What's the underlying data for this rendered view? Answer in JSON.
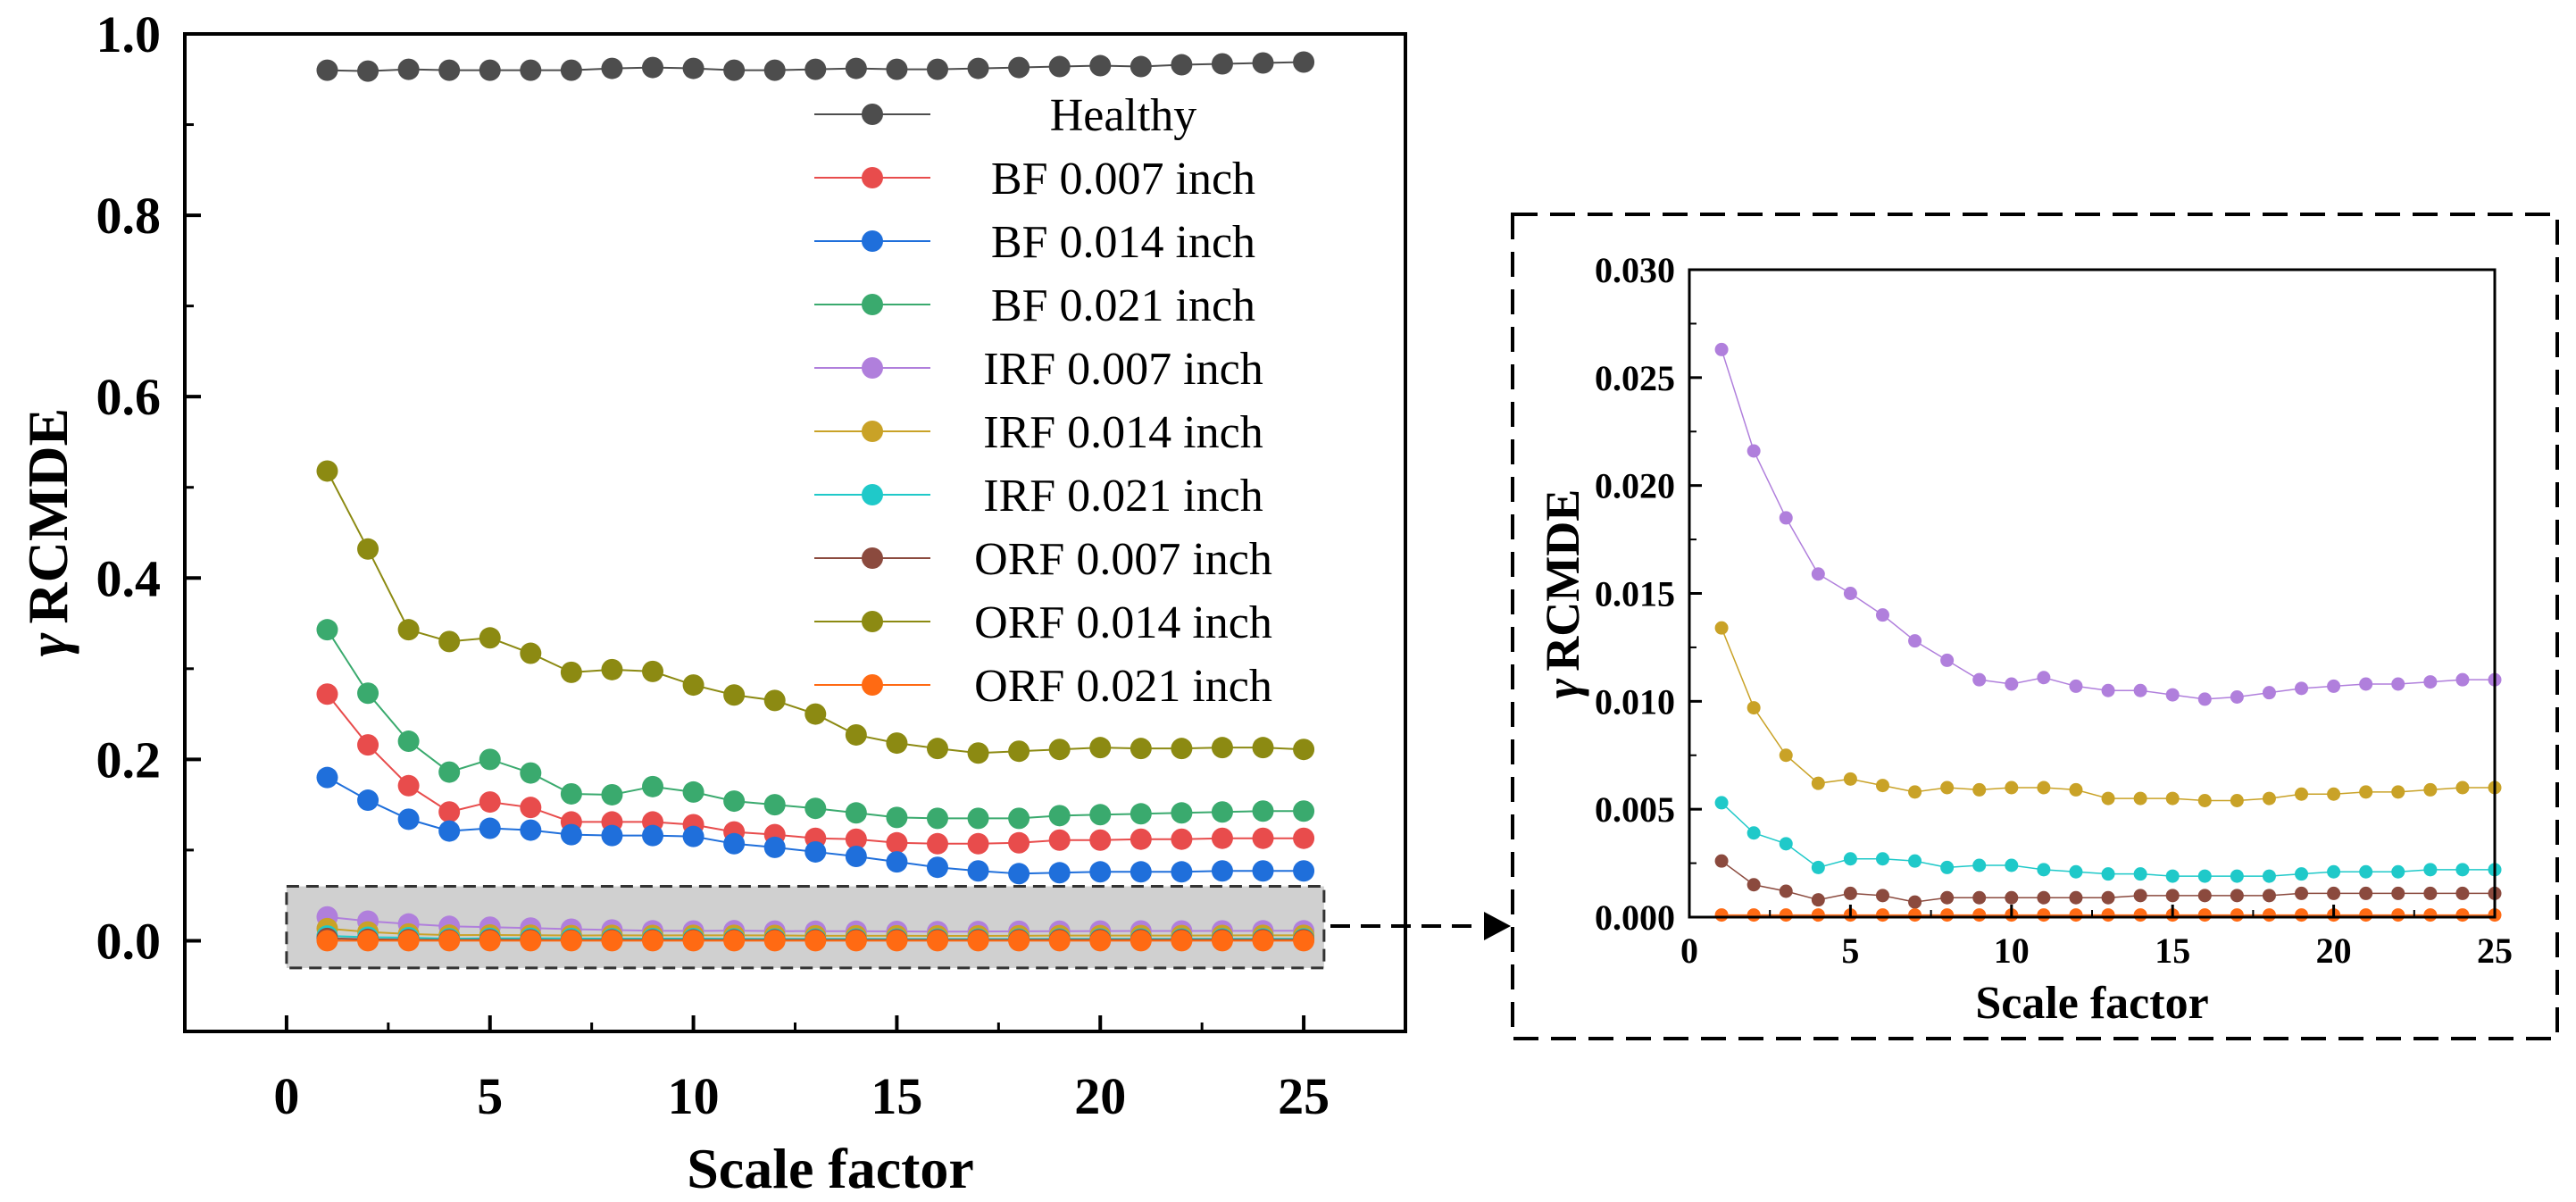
{
  "chart_data": [
    {
      "type": "line",
      "name": "main",
      "xlabel": "Scale factor",
      "ylabel_symbol": "γ",
      "ylabel_text": "RCMDE",
      "xlim": [
        -2.5,
        27.5
      ],
      "ylim": [
        -0.1,
        1.0
      ],
      "xticks": [
        0,
        5,
        10,
        15,
        20,
        25
      ],
      "xtick_labels": [
        "0",
        "5",
        "10",
        "15",
        "20",
        "25"
      ],
      "yticks": [
        0.0,
        0.2,
        0.4,
        0.6,
        0.8,
        1.0
      ],
      "ytick_labels": [
        "0.0",
        "0.2",
        "0.4",
        "0.6",
        "0.8",
        "1.0"
      ],
      "legend_position": "top-right",
      "highlight_box": {
        "x": [
          0,
          25.5
        ],
        "y": [
          -0.03,
          0.06
        ]
      },
      "x": [
        1,
        2,
        3,
        4,
        5,
        6,
        7,
        8,
        9,
        10,
        11,
        12,
        13,
        14,
        15,
        16,
        17,
        18,
        19,
        20,
        21,
        22,
        23,
        24,
        25
      ],
      "series": [
        {
          "name": "Healthy",
          "color": "#4d4d4d",
          "values": [
            0.96,
            0.959,
            0.961,
            0.96,
            0.96,
            0.96,
            0.96,
            0.962,
            0.963,
            0.962,
            0.96,
            0.96,
            0.961,
            0.962,
            0.961,
            0.961,
            0.962,
            0.963,
            0.964,
            0.965,
            0.964,
            0.966,
            0.967,
            0.968,
            0.969
          ]
        },
        {
          "name": "BF 0.007 inch",
          "color": "#e84c4c",
          "values": [
            0.272,
            0.216,
            0.171,
            0.142,
            0.153,
            0.147,
            0.131,
            0.131,
            0.131,
            0.128,
            0.12,
            0.117,
            0.113,
            0.112,
            0.108,
            0.107,
            0.107,
            0.108,
            0.111,
            0.111,
            0.112,
            0.112,
            0.113,
            0.113,
            0.113
          ]
        },
        {
          "name": "BF 0.014 inch",
          "color": "#1f6fdb",
          "values": [
            0.18,
            0.155,
            0.134,
            0.121,
            0.124,
            0.122,
            0.117,
            0.116,
            0.116,
            0.115,
            0.107,
            0.103,
            0.098,
            0.093,
            0.087,
            0.081,
            0.077,
            0.074,
            0.075,
            0.076,
            0.076,
            0.076,
            0.077,
            0.077,
            0.077
          ]
        },
        {
          "name": "BF 0.021 inch",
          "color": "#3aaa6e",
          "values": [
            0.343,
            0.273,
            0.22,
            0.186,
            0.2,
            0.185,
            0.162,
            0.161,
            0.17,
            0.164,
            0.154,
            0.15,
            0.146,
            0.141,
            0.136,
            0.135,
            0.135,
            0.135,
            0.138,
            0.139,
            0.14,
            0.141,
            0.142,
            0.143,
            0.143
          ]
        },
        {
          "name": "IRF 0.007 inch",
          "color": "#b07fdc",
          "values": [
            0.0263,
            0.0216,
            0.0185,
            0.0159,
            0.015,
            0.014,
            0.0128,
            0.0119,
            0.011,
            0.0108,
            0.0111,
            0.0107,
            0.0105,
            0.0105,
            0.0103,
            0.0101,
            0.0102,
            0.0104,
            0.0106,
            0.0107,
            0.0108,
            0.0108,
            0.0109,
            0.011,
            0.011
          ]
        },
        {
          "name": "IRF 0.014 inch",
          "color": "#c9a227",
          "values": [
            0.0134,
            0.0097,
            0.0075,
            0.0062,
            0.0064,
            0.0061,
            0.0058,
            0.006,
            0.0059,
            0.006,
            0.006,
            0.0059,
            0.0055,
            0.0055,
            0.0055,
            0.0054,
            0.0054,
            0.0055,
            0.0057,
            0.0057,
            0.0058,
            0.0058,
            0.0059,
            0.006,
            0.006
          ]
        },
        {
          "name": "IRF 0.021 inch",
          "color": "#1fc9c9",
          "values": [
            0.0053,
            0.0039,
            0.0034,
            0.0023,
            0.0027,
            0.0027,
            0.0026,
            0.0023,
            0.0024,
            0.0024,
            0.0022,
            0.0021,
            0.002,
            0.002,
            0.0019,
            0.0019,
            0.0019,
            0.0019,
            0.002,
            0.0021,
            0.0021,
            0.0021,
            0.0022,
            0.0022,
            0.0022
          ]
        },
        {
          "name": "ORF 0.007 inch",
          "color": "#8b4a3e",
          "values": [
            0.0026,
            0.0015,
            0.0012,
            0.0008,
            0.0011,
            0.001,
            0.0007,
            0.0009,
            0.0009,
            0.0009,
            0.0009,
            0.0009,
            0.0009,
            0.001,
            0.001,
            0.001,
            0.001,
            0.001,
            0.0011,
            0.0011,
            0.0011,
            0.0011,
            0.0011,
            0.0011,
            0.0011
          ]
        },
        {
          "name": "ORF 0.014 inch",
          "color": "#8c8a12",
          "values": [
            0.518,
            0.432,
            0.343,
            0.33,
            0.334,
            0.317,
            0.296,
            0.299,
            0.297,
            0.282,
            0.271,
            0.265,
            0.25,
            0.227,
            0.218,
            0.212,
            0.207,
            0.209,
            0.211,
            0.213,
            0.212,
            0.212,
            0.213,
            0.213,
            0.211
          ]
        },
        {
          "name": "ORF 0.021 inch",
          "color": "#ff6a13",
          "values": [
            0.0001,
            0.0001,
            0.0001,
            0.0001,
            0.0001,
            0.0001,
            0.0001,
            0.0001,
            0.0001,
            0.0001,
            0.0001,
            0.0001,
            0.0001,
            0.0001,
            0.0001,
            0.0001,
            0.0001,
            0.0001,
            0.0001,
            0.0001,
            0.0001,
            0.0001,
            0.0001,
            0.0001,
            0.0001
          ]
        }
      ]
    },
    {
      "type": "line",
      "name": "inset",
      "xlabel": "Scale factor",
      "ylabel_symbol": "γ",
      "ylabel_text": "RCMDE",
      "xlim": [
        0,
        25
      ],
      "ylim": [
        0,
        0.03
      ],
      "xticks": [
        0,
        5,
        10,
        15,
        20,
        25
      ],
      "xtick_labels": [
        "0",
        "5",
        "10",
        "15",
        "20",
        "25"
      ],
      "yticks": [
        0.0,
        0.005,
        0.01,
        0.015,
        0.02,
        0.025,
        0.03
      ],
      "ytick_labels": [
        "0.000",
        "0.005",
        "0.010",
        "0.015",
        "0.020",
        "0.025",
        "0.030"
      ],
      "series_shown": [
        "IRF 0.007 inch",
        "IRF 0.014 inch",
        "IRF 0.021 inch",
        "ORF 0.007 inch",
        "ORF 0.021 inch"
      ]
    }
  ]
}
